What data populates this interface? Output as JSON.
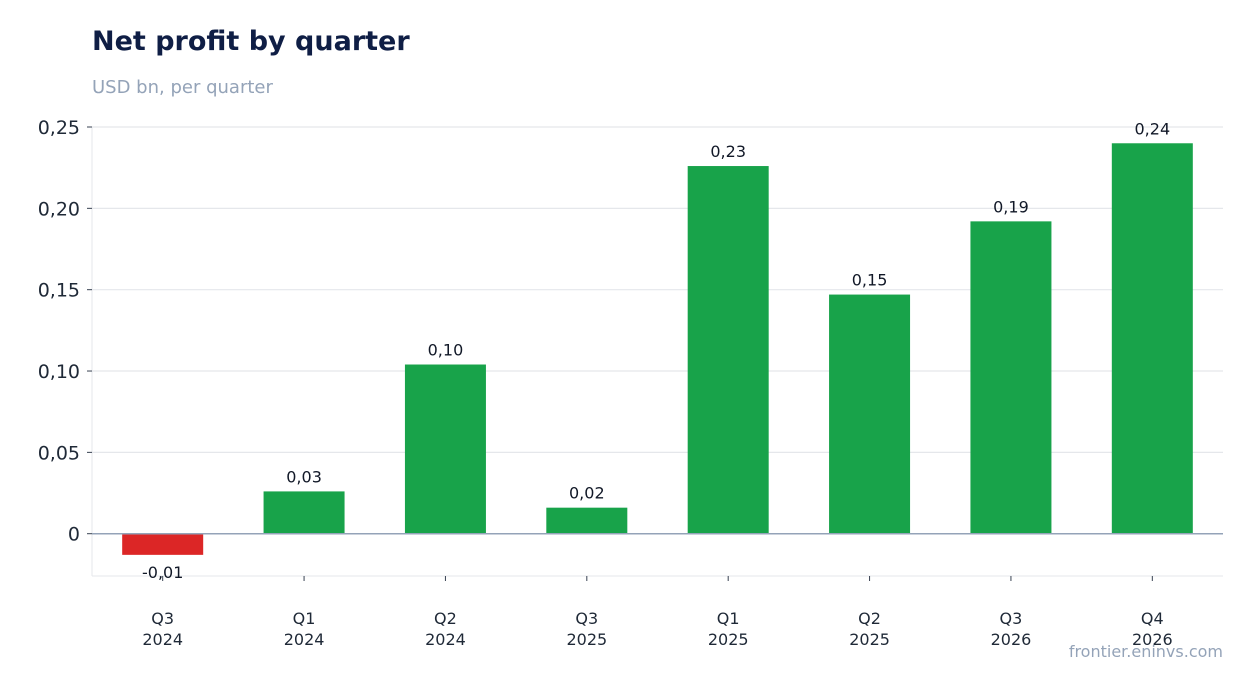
{
  "header": {
    "title": "Net profit by quarter",
    "subtitle": "USD bn, per quarter"
  },
  "footer": {
    "source": "frontier.eninvs.com"
  },
  "chart_data": {
    "type": "bar",
    "title": "Net profit by quarter",
    "subtitle": "USD bn, per quarter",
    "categories": [
      "Q3\n2024",
      "Q1\n2024",
      "Q2\n2024",
      "Q3\n2025",
      "Q1\n2025",
      "Q2\n2025",
      "Q3\n2026",
      "Q4\n2026"
    ],
    "values": [
      -0.013,
      0.026,
      0.104,
      0.016,
      0.226,
      0.147,
      0.192,
      0.24
    ],
    "data_labels": [
      "-0,01",
      "0,03",
      "0,10",
      "0,02",
      "0,23",
      "0,15",
      "0,19",
      "0,24"
    ],
    "yticks": [
      0,
      0.05,
      0.1,
      0.15,
      0.2,
      0.25
    ],
    "ytick_labels": [
      "0",
      "0,05",
      "0,10",
      "0,15",
      "0,20",
      "0,25"
    ],
    "ylim": [
      -0.026,
      0.25
    ],
    "grid": true,
    "positive_color": "#18a34a",
    "negative_color": "#dc2626",
    "xlabel": "",
    "ylabel": ""
  }
}
